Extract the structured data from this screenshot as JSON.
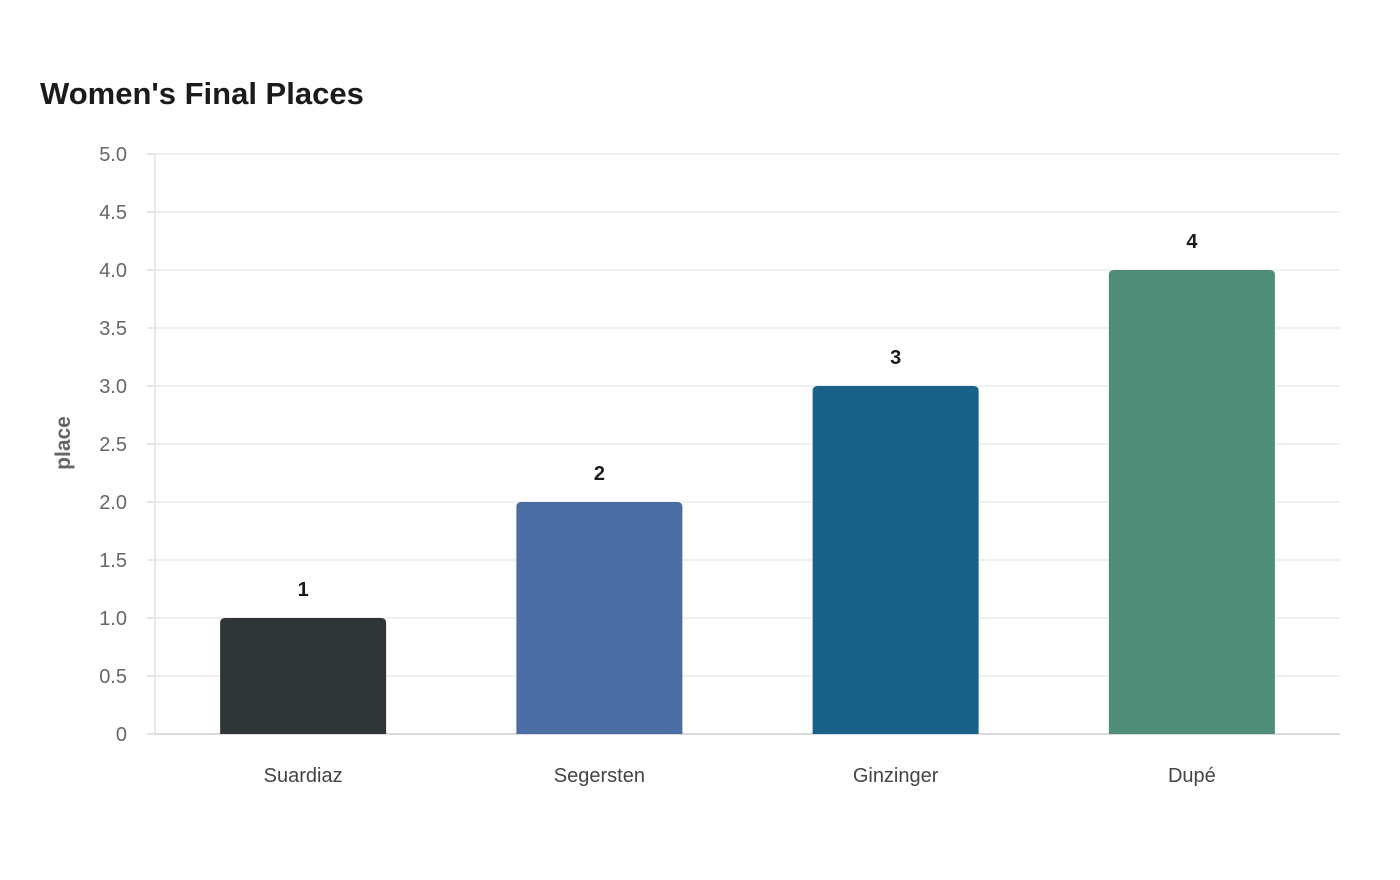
{
  "chart_data": {
    "type": "bar",
    "title": "Women's Final Places",
    "xlabel": "",
    "ylabel": "place",
    "categories": [
      "Suardiaz",
      "Segersten",
      "Ginzinger",
      "Dupé"
    ],
    "values": [
      1,
      2,
      3,
      4
    ],
    "data_labels": [
      "1",
      "2",
      "3",
      "4"
    ],
    "colors": [
      "#2e3538",
      "#4a6ea3",
      "#186289",
      "#4f8c7a"
    ],
    "ylim": [
      0,
      5
    ],
    "yticks": [
      {
        "value": 0,
        "label": "0"
      },
      {
        "value": 0.5,
        "label": "0.5"
      },
      {
        "value": 1,
        "label": "1.0"
      },
      {
        "value": 1.5,
        "label": "1.5"
      },
      {
        "value": 2,
        "label": "2.0"
      },
      {
        "value": 2.5,
        "label": "2.5"
      },
      {
        "value": 3,
        "label": "3.0"
      },
      {
        "value": 3.5,
        "label": "3.5"
      },
      {
        "value": 4,
        "label": "4.0"
      },
      {
        "value": 4.5,
        "label": "4.5"
      },
      {
        "value": 5,
        "label": "5.0"
      }
    ],
    "grid": true,
    "legend": "none"
  }
}
